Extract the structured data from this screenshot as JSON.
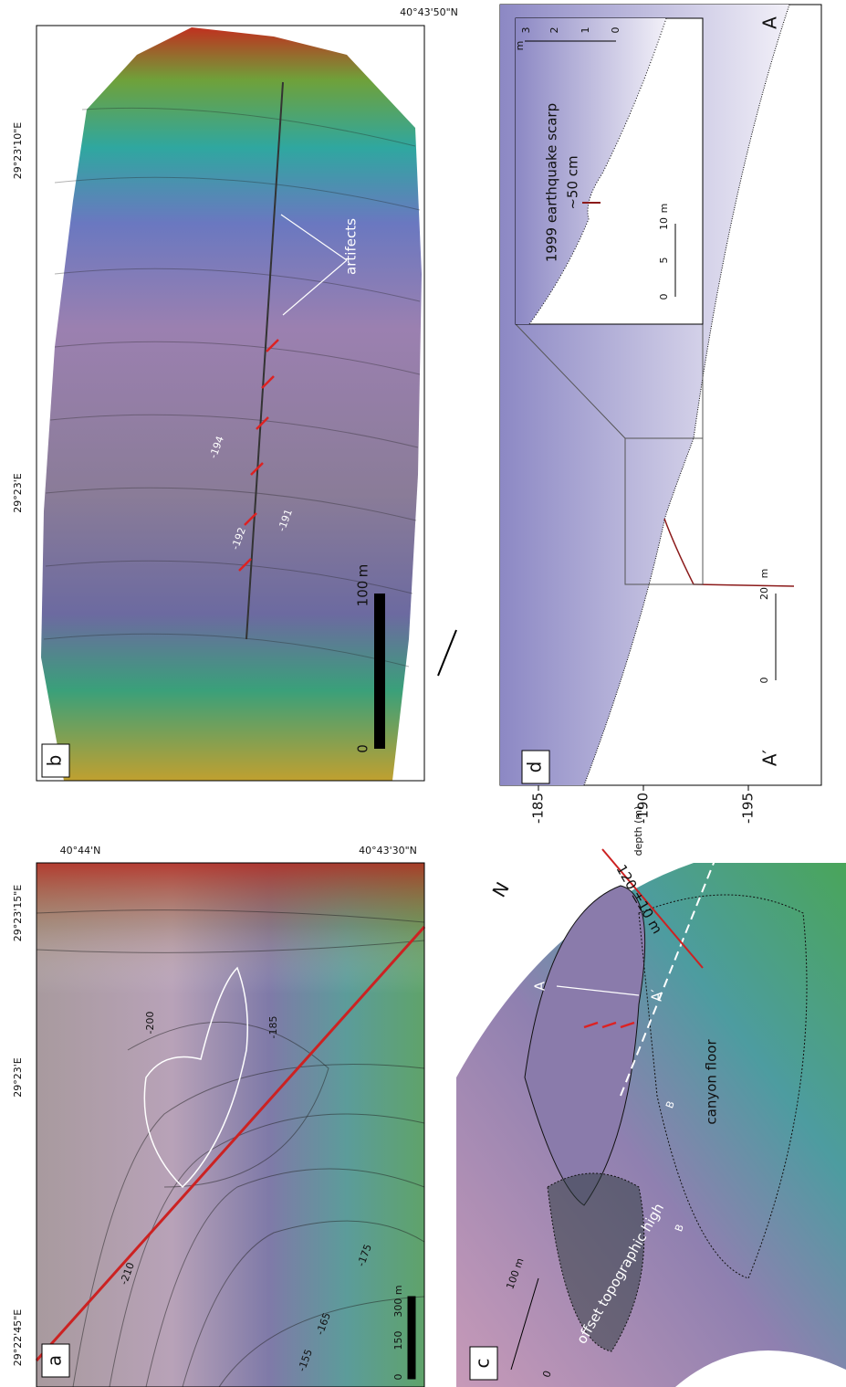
{
  "panel_a": {
    "label": "a",
    "longitudes": [
      "29°22'45\"E",
      "29°23'E",
      "29°23'15\"E"
    ],
    "latitudes": [
      "40°44'N",
      "40°43'30\"N"
    ],
    "contours": [
      "-210",
      "-200",
      "-185",
      "-175",
      "-165",
      "-155"
    ],
    "scale": [
      "0",
      "150",
      "300 m"
    ]
  },
  "panel_b": {
    "label": "b",
    "latitude": "40°43'50\"N",
    "longitudes": [
      "29°23'10\"E",
      "29°23'E"
    ],
    "contours": [
      "-194",
      "-192",
      "-191"
    ],
    "annotation": "artifects",
    "scale": [
      "0",
      "100",
      "m"
    ]
  },
  "panel_c": {
    "label": "c",
    "north": "N",
    "offset": "120 ±10 m",
    "profile_start": "A",
    "profile_end": "A′",
    "markers": [
      "B",
      "B"
    ],
    "canyon": "canyon floor",
    "high": "offset topographic high",
    "scale": [
      "0",
      "100 m"
    ]
  },
  "panel_d": {
    "label": "d",
    "axis_label": "depth (m)",
    "depth_ticks": [
      "-185",
      "-190",
      "-195"
    ],
    "ends": [
      "A′",
      "A"
    ],
    "scale": [
      "0",
      "20",
      "m"
    ],
    "inset": {
      "title": "1999 earthquake scarp",
      "offset": "~50 cm",
      "x_scale": [
        "0",
        "5",
        "10",
        "m"
      ],
      "y_scale": [
        "0",
        "1",
        "2",
        "3",
        "m"
      ]
    }
  }
}
